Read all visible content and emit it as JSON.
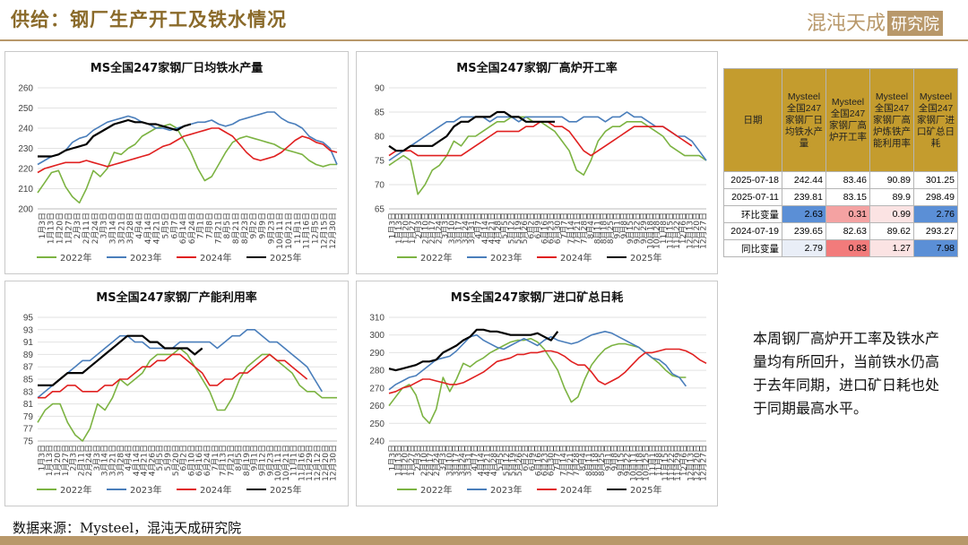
{
  "header": {
    "title": "供给：钢厂生产开工及铁水情况",
    "logo_text": "混沌天成",
    "logo_box": "研究院"
  },
  "table": {
    "headers": [
      "日期",
      "Mysteel全国247家钢厂日均铁水产量",
      "Mysteel全国247家钢厂高炉开工率",
      "Mysteel全国247家钢厂高炉炼铁产能利用率",
      "Mysteel全国247家钢厂进口矿总日耗"
    ],
    "rows": [
      {
        "label": "2025-07-18",
        "values": [
          "242.44",
          "83.46",
          "90.89",
          "301.25"
        ],
        "colors": [
          "",
          "",
          "",
          ""
        ]
      },
      {
        "label": "2025-07-11",
        "values": [
          "239.81",
          "83.15",
          "89.9",
          "298.49"
        ],
        "colors": [
          "",
          "",
          "",
          ""
        ]
      },
      {
        "label": "环比变量",
        "values": [
          "2.63",
          "0.31",
          "0.99",
          "2.76"
        ],
        "colors": [
          "#5b8fd6",
          "#f4a2a2",
          "#fbe3e3",
          "#5b8fd6"
        ]
      },
      {
        "label": "2024-07-19",
        "values": [
          "239.65",
          "82.63",
          "89.62",
          "293.27"
        ],
        "colors": [
          "",
          "",
          "",
          ""
        ]
      },
      {
        "label": "同比变量",
        "values": [
          "2.79",
          "0.83",
          "1.27",
          "7.98"
        ],
        "colors": [
          "#e9eef7",
          "#f27b7b",
          "#fbe3e3",
          "#5b8fd6"
        ]
      }
    ]
  },
  "comment": "本周钢厂高炉开工率及铁水产量均有所回升，当前铁水仍高于去年同期，进口矿日耗也处于同期最高水平。",
  "source": "数据来源：Mysteel，混沌天成研究院",
  "chart_data": [
    {
      "type": "line",
      "title": "MS全国247家钢厂日均铁水产量",
      "ylim": [
        200,
        260
      ],
      "yticks": [
        200,
        210,
        220,
        230,
        240,
        250,
        260
      ],
      "xlabels": [
        "1月3日",
        "1月13日",
        "1月20日",
        "1月27日",
        "2月3日",
        "2月11日",
        "2月24日",
        "3月3日",
        "3月14日",
        "3月21日",
        "3月28日",
        "4月4日",
        "4月14日",
        "4月21日",
        "5月5日",
        "6月7日",
        "6月14日",
        "6月24日",
        "7月1日",
        "7月8日",
        "7月21日",
        "8月5日",
        "8月21日",
        "8月23日",
        "9月2日",
        "9月9日",
        "9月23日",
        "10月11日",
        "10月21日",
        "11月1日",
        "11月16日",
        "12月5日",
        "12月15日",
        "12月30日"
      ],
      "legend": [
        "2022年",
        "2023年",
        "2024年",
        "2025年"
      ],
      "colors": [
        "#7cb342",
        "#4a7ebb",
        "#e02020",
        "#000000"
      ],
      "series": [
        {
          "name": "2022年",
          "values": [
            208,
            213,
            218,
            219,
            211,
            206,
            203,
            210,
            219,
            216,
            220,
            228,
            227,
            230,
            232,
            236,
            238,
            240,
            241,
            242,
            240,
            234,
            228,
            220,
            214,
            216,
            222,
            228,
            233,
            235,
            236,
            235,
            234,
            233,
            232,
            230,
            229,
            228,
            227,
            224,
            222,
            221,
            222,
            222
          ]
        },
        {
          "name": "2023年",
          "values": [
            222,
            224,
            226,
            227,
            229,
            233,
            235,
            236,
            239,
            241,
            243,
            244,
            245,
            246,
            245,
            243,
            242,
            240,
            240,
            239,
            240,
            241,
            242,
            243,
            243,
            244,
            242,
            241,
            242,
            244,
            245,
            246,
            247,
            248,
            248,
            245,
            243,
            242,
            240,
            236,
            234,
            233,
            230,
            222
          ]
        },
        {
          "name": "2024年",
          "values": [
            218,
            220,
            221,
            222,
            223,
            223,
            223,
            224,
            223,
            222,
            221,
            222,
            223,
            224,
            225,
            226,
            227,
            229,
            231,
            232,
            234,
            236,
            237,
            238,
            239,
            240,
            240,
            238,
            236,
            232,
            228,
            225,
            224,
            225,
            226,
            228,
            231,
            234,
            236,
            235,
            233,
            232,
            229,
            228
          ]
        },
        {
          "name": "2025年",
          "values": [
            226,
            226,
            226,
            227,
            229,
            230,
            231,
            232,
            236,
            238,
            240,
            242,
            243,
            244,
            243,
            243,
            242,
            242,
            241,
            240,
            239,
            241,
            242
          ]
        }
      ]
    },
    {
      "type": "line",
      "title": "MS全国247家钢厂高炉开工率",
      "ylim": [
        65,
        90
      ],
      "yticks": [
        65,
        70,
        75,
        80,
        85,
        90
      ],
      "xlabels": [
        "1月3日",
        "1月13日",
        "1月20日",
        "1月27日",
        "2月3日",
        "2月10日",
        "2月17日",
        "2月24日",
        "3月3日",
        "3月10日",
        "3月17日",
        "3月24日",
        "3月31日",
        "4月7日",
        "4月14日",
        "4月21日",
        "4月28日",
        "5月5日",
        "5月12日",
        "5月19日",
        "5月26日",
        "6月2日",
        "6月9日",
        "6月16日",
        "6月23日",
        "6月30日",
        "7月7日",
        "7月14日",
        "7月21日",
        "7月28日",
        "8月4日",
        "8月11日",
        "8月18日",
        "8月25日",
        "9月1日",
        "9月8日",
        "9月15日",
        "9月22日",
        "9月29日",
        "10月18日",
        "10月28日",
        "11月8日",
        "11月15日",
        "11月22日",
        "12月6日",
        "12月13日",
        "12月20日",
        "12月27日"
      ],
      "legend": [
        "2022年",
        "2023年",
        "2024年",
        "2025年"
      ],
      "colors": [
        "#7cb342",
        "#4a7ebb",
        "#e02020",
        "#000000"
      ],
      "series": [
        {
          "name": "2022年",
          "values": [
            74,
            75,
            76,
            75,
            68,
            70,
            73,
            74,
            76,
            79,
            78,
            80,
            80,
            81,
            82,
            83,
            83,
            84,
            84,
            84,
            83,
            83,
            82,
            81,
            79,
            77,
            73,
            72,
            75,
            79,
            81,
            82,
            82,
            83,
            83,
            83,
            82,
            81,
            80,
            78,
            77,
            76,
            76,
            76,
            75
          ]
        },
        {
          "name": "2023年",
          "values": [
            75,
            76,
            77,
            78,
            79,
            80,
            81,
            82,
            83,
            83,
            84,
            84,
            84,
            84,
            83,
            84,
            84,
            84,
            83,
            84,
            84,
            84,
            84,
            84,
            84,
            83,
            83,
            84,
            84,
            84,
            83,
            84,
            84,
            85,
            84,
            84,
            83,
            82,
            82,
            81,
            80,
            80,
            79,
            77,
            75
          ]
        },
        {
          "name": "2024年",
          "values": [
            76,
            77,
            77,
            77,
            76,
            76,
            76,
            76,
            76,
            76,
            76,
            77,
            78,
            79,
            80,
            81,
            81,
            81,
            81,
            82,
            82,
            83,
            83,
            82,
            82,
            81,
            79,
            77,
            76,
            77,
            78,
            79,
            80,
            81,
            82,
            82,
            82,
            82,
            82,
            81,
            80,
            79,
            78
          ]
        },
        {
          "name": "2025年",
          "values": [
            78,
            77,
            77,
            78,
            78,
            78,
            78,
            79,
            80,
            82,
            83,
            83,
            84,
            84,
            84,
            85,
            85,
            84,
            84,
            83,
            83,
            83,
            83,
            83
          ]
        }
      ]
    },
    {
      "type": "line",
      "title": "MS全国247家钢厂产能利用率",
      "ylim": [
        75,
        95
      ],
      "yticks": [
        75,
        77,
        79,
        81,
        83,
        85,
        87,
        89,
        91,
        93,
        95
      ],
      "xlabels": [
        "1月3日",
        "1月13日",
        "1月20日",
        "1月27日",
        "2月3日",
        "2月11日",
        "2月24日",
        "3月3日",
        "3月14日",
        "3月21日",
        "3月28日",
        "4月4日",
        "4月14日",
        "4月21日",
        "4月26日",
        "5月5日",
        "5月9日",
        "5月20日",
        "6月2日",
        "6月10日",
        "6月16日",
        "6月24日",
        "7月1日",
        "7月13日",
        "7月21日",
        "8月5日",
        "8月19日",
        "9月1日",
        "9月12日",
        "9月23日",
        "10月11日",
        "10月21日",
        "11月1日",
        "11月16日",
        "11月29日",
        "12月12日",
        "12月20日",
        "12月30日"
      ],
      "legend": [
        "2022年",
        "2023年",
        "2024年",
        "2025年"
      ],
      "colors": [
        "#7cb342",
        "#4a7ebb",
        "#e02020",
        "#000000"
      ],
      "series": [
        {
          "name": "2022年",
          "values": [
            78,
            80,
            81,
            81,
            78,
            76,
            75,
            77,
            81,
            80,
            82,
            85,
            84,
            85,
            86,
            88,
            89,
            89,
            89,
            90,
            89,
            87,
            85,
            83,
            80,
            80,
            82,
            85,
            87,
            88,
            89,
            89,
            88,
            87,
            86,
            84,
            83,
            83,
            82,
            82,
            82
          ]
        },
        {
          "name": "2023年",
          "values": [
            82,
            83,
            84,
            85,
            86,
            87,
            88,
            88,
            89,
            90,
            91,
            92,
            92,
            91,
            91,
            90,
            90,
            90,
            90,
            91,
            91,
            91,
            91,
            91,
            90,
            91,
            92,
            92,
            93,
            93,
            92,
            91,
            91,
            90,
            89,
            88,
            87,
            85,
            83
          ]
        },
        {
          "name": "2024年",
          "values": [
            82,
            82,
            83,
            83,
            84,
            84,
            83,
            83,
            83,
            84,
            84,
            85,
            85,
            86,
            87,
            87,
            88,
            88,
            89,
            89,
            88,
            87,
            86,
            84,
            84,
            85,
            85,
            86,
            86,
            87,
            88,
            89,
            88,
            88,
            87,
            86,
            85
          ]
        },
        {
          "name": "2025年",
          "values": [
            84,
            84,
            84,
            85,
            86,
            86,
            86,
            87,
            88,
            89,
            90,
            91,
            92,
            92,
            92,
            91,
            91,
            90,
            90,
            90,
            90,
            89,
            90
          ]
        }
      ]
    },
    {
      "type": "line",
      "title": "MS全国247家钢厂进口矿总日耗",
      "ylim": [
        240,
        310
      ],
      "yticks": [
        240,
        250,
        260,
        270,
        280,
        290,
        300,
        310
      ],
      "xlabels": [
        "1月3日",
        "1月13日",
        "1月20日",
        "1月27日",
        "2月3日",
        "2月10日",
        "2月17日",
        "2月24日",
        "3月3日",
        "3月10日",
        "3月17日",
        "3月24日",
        "3月31日",
        "4月7日",
        "4月14日",
        "4月21日",
        "4月28日",
        "5月5日",
        "5月12日",
        "5月19日",
        "5月26日",
        "6月2日",
        "6月9日",
        "6月16日",
        "6月23日",
        "6月30日",
        "7月7日",
        "7月14日",
        "7月21日",
        "7月28日",
        "8月4日",
        "8月11日",
        "8月18日",
        "8月25日",
        "9月1日",
        "9月8日",
        "9月15日",
        "9月22日",
        "10月11日",
        "10月18日",
        "10月25日",
        "11月1日",
        "11月8日",
        "11月15日",
        "11月22日",
        "11月29日",
        "12月6日",
        "12月13日",
        "12月20日",
        "12月27日"
      ],
      "legend": [
        "2022年",
        "2023年",
        "2024年",
        "2025年"
      ],
      "colors": [
        "#7cb342",
        "#4a7ebb",
        "#e02020",
        "#000000"
      ],
      "series": [
        {
          "name": "2022年",
          "values": [
            260,
            265,
            270,
            272,
            266,
            254,
            250,
            258,
            276,
            268,
            275,
            284,
            282,
            285,
            287,
            290,
            292,
            294,
            296,
            297,
            297,
            298,
            296,
            292,
            286,
            280,
            270,
            262,
            265,
            275,
            283,
            288,
            292,
            294,
            295,
            295,
            294,
            293,
            290,
            287,
            284,
            280,
            277,
            276,
            276
          ]
        },
        {
          "name": "2023年",
          "values": [
            269,
            272,
            274,
            276,
            277,
            280,
            283,
            286,
            287,
            288,
            291,
            295,
            299,
            300,
            297,
            295,
            293,
            292,
            294,
            296,
            298,
            296,
            294,
            297,
            299,
            297,
            296,
            295,
            296,
            298,
            300,
            301,
            302,
            301,
            299,
            297,
            295,
            293,
            290,
            287,
            286,
            283,
            278,
            276,
            271
          ]
        },
        {
          "name": "2024年",
          "values": [
            267,
            268,
            270,
            271,
            273,
            275,
            275,
            274,
            273,
            272,
            272,
            273,
            275,
            277,
            279,
            282,
            285,
            286,
            287,
            289,
            289,
            290,
            290,
            291,
            291,
            290,
            288,
            285,
            283,
            283,
            279,
            274,
            272,
            274,
            276,
            279,
            283,
            287,
            290,
            290,
            291,
            292,
            292,
            292,
            291,
            289,
            286,
            284
          ]
        },
        {
          "name": "2025年",
          "values": [
            281,
            280,
            281,
            282,
            283,
            285,
            285,
            286,
            290,
            292,
            294,
            297,
            299,
            303,
            303,
            302,
            302,
            301,
            300,
            300,
            300,
            300,
            301,
            299,
            297,
            302
          ]
        }
      ]
    }
  ]
}
